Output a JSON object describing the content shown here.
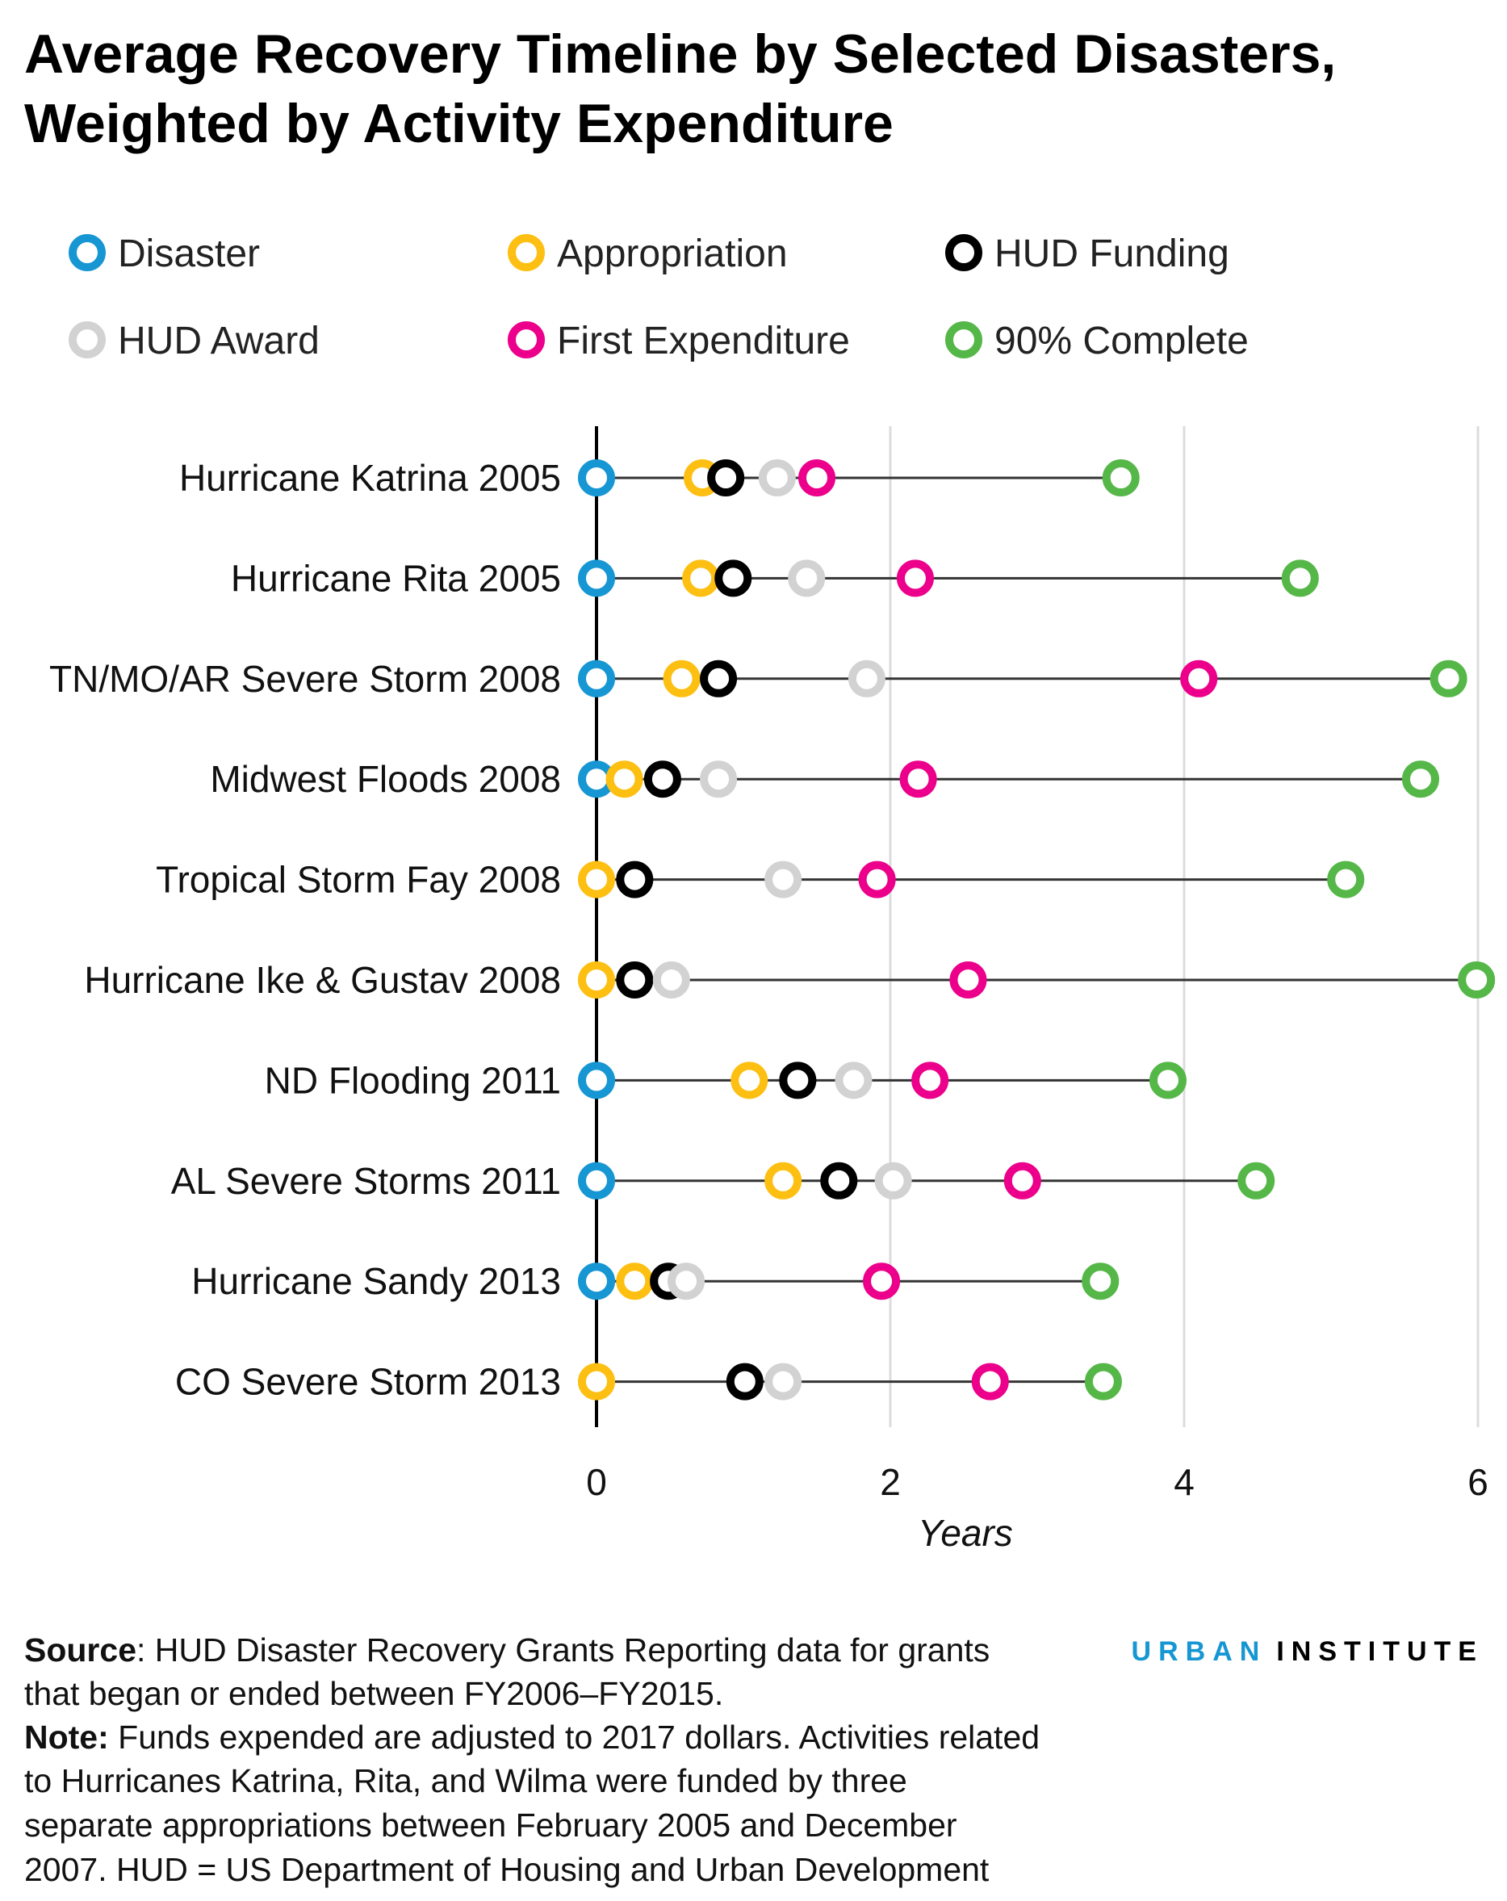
{
  "chart_data": {
    "type": "scatter",
    "subtype": "dot-timeline",
    "title": "Average Recovery Timeline by Selected Disasters, Weighted by Activity Expenditure",
    "title_lines": [
      "Average Recovery Timeline by Selected Disasters,",
      "Weighted by Activity Expenditure"
    ],
    "xlabel": "Years",
    "xlim": [
      0,
      6
    ],
    "xticks": [
      "0",
      "2",
      "4",
      "6"
    ],
    "xtick_values": [
      0,
      2,
      4,
      6
    ],
    "grid": "vertical",
    "legend_position": "top",
    "categories": [
      "Hurricane Katrina 2005",
      "Hurricane Rita 2005",
      "TN/MO/AR Severe Storm 2008",
      "Midwest Floods 2008",
      "Tropical Storm Fay 2008",
      "Hurricane Ike & Gustav 2008",
      "ND Flooding 2011",
      "AL Severe Storms 2011",
      "Hurricane Sandy 2013",
      "CO Severe Storm 2013"
    ],
    "series": [
      {
        "name": "Disaster",
        "color": "#1696d2",
        "values": [
          0,
          0,
          0,
          0,
          null,
          null,
          0,
          0,
          0,
          null
        ]
      },
      {
        "name": "Appropriation",
        "color": "#fdbf11",
        "values": [
          0.72,
          0.71,
          0.58,
          0.19,
          0,
          0,
          1.04,
          1.27,
          0.26,
          0
        ]
      },
      {
        "name": "HUD Funding",
        "color": "#000000",
        "values": [
          0.88,
          0.93,
          0.83,
          0.45,
          0.26,
          0.26,
          1.37,
          1.65,
          0.49,
          1.01
        ]
      },
      {
        "name": "HUD Award",
        "color": "#d2d2d2",
        "values": [
          1.23,
          1.43,
          1.84,
          0.83,
          1.27,
          0.51,
          1.75,
          2.02,
          0.61,
          1.27
        ]
      },
      {
        "name": "First Expenditure",
        "color": "#ec008b",
        "values": [
          1.5,
          2.17,
          4.1,
          2.19,
          1.91,
          2.53,
          2.27,
          2.9,
          1.94,
          2.68
        ]
      },
      {
        "name": "90% Complete",
        "color": "#55b748",
        "values": [
          3.57,
          4.79,
          5.8,
          5.61,
          5.1,
          5.99,
          3.89,
          4.49,
          3.43,
          3.45
        ]
      }
    ]
  },
  "footer": {
    "source_label": "Source",
    "source_lines": [
      ": HUD Disaster Recovery Grants Reporting data for grants",
      "that began or ended between FY2006–FY2015."
    ],
    "note_label": "Note:",
    "note_lines": [
      " Funds expended are adjusted to 2017 dollars. Activities related",
      "to Hurricanes Katrina, Rita, and Wilma were funded by three",
      "separate appropriations between February 2005 and December",
      "2007. HUD = US Department of Housing and Urban Development"
    ]
  },
  "logo": {
    "part1": "URBAN",
    "part2": "INSTITUTE",
    "color1": "#1696d2",
    "color2": "#000000"
  }
}
